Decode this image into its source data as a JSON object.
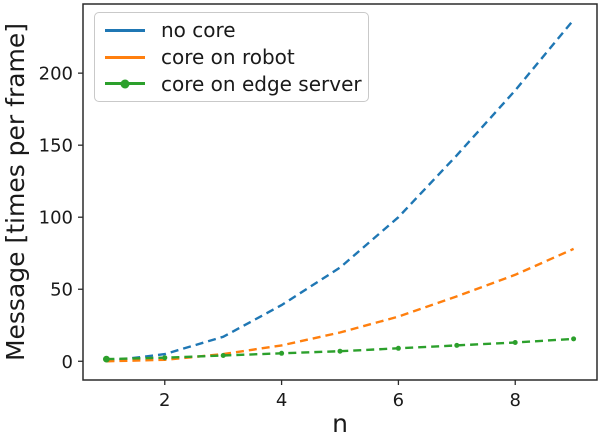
{
  "chart_data": {
    "type": "line",
    "title": "",
    "xlabel": "n",
    "ylabel": "Message [times per frame]",
    "x": [
      1,
      2,
      3,
      4,
      5,
      6,
      7,
      8,
      9
    ],
    "series": [
      {
        "name": "no core",
        "color": "#1f77b4",
        "linestyle": "dashed",
        "marker": "none",
        "values": [
          0,
          5,
          17,
          39,
          65,
          100,
          143,
          188,
          237
        ]
      },
      {
        "name": "core on robot",
        "color": "#ff7f0e",
        "linestyle": "dashed",
        "marker": "none",
        "values": [
          0,
          1,
          5,
          11,
          20,
          31,
          45,
          60,
          78
        ]
      },
      {
        "name": "core on edge server",
        "color": "#2ca02c",
        "linestyle": "dashed",
        "marker": "dot",
        "values": [
          1.5,
          2.5,
          4,
          5.5,
          7,
          9,
          11,
          13,
          15.5
        ]
      }
    ],
    "xticks": [
      2,
      4,
      6,
      8
    ],
    "yticks": [
      0,
      50,
      100,
      150,
      200
    ],
    "xlim": [
      0.6,
      9.4
    ],
    "ylim": [
      -13,
      248
    ],
    "grid": false,
    "legend_position": "upper left",
    "axis_color": "#2b2b2b",
    "text_color": "#1a1a1a"
  }
}
